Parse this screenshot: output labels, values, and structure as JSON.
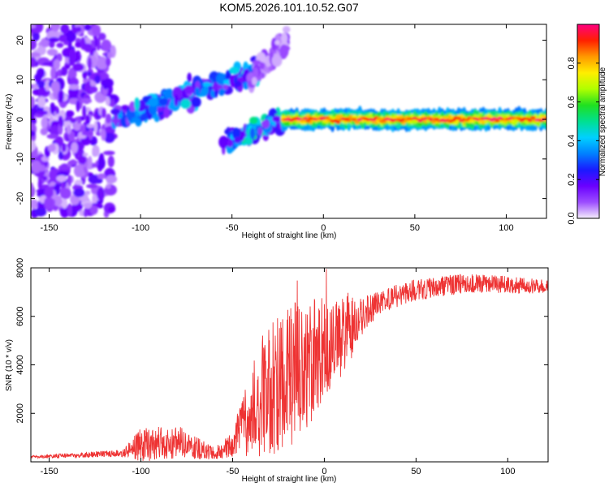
{
  "title": "KOM5.2026.101.10.52.G07",
  "chart_data": [
    {
      "type": "heatmap",
      "name": "spectrogram",
      "xlabel": "Height of straight line (km)",
      "ylabel": "Frequency (Hz)",
      "xlim": [
        -160,
        122
      ],
      "ylim": [
        -25,
        24
      ],
      "xticks": [
        -150,
        -100,
        -50,
        0,
        50,
        100
      ],
      "yticks": [
        -20,
        -10,
        0,
        10,
        20
      ],
      "colorbar": {
        "label": "Normalized spectral amplitude",
        "range": [
          0,
          1
        ],
        "ticks": [
          0.0,
          0.2,
          0.4,
          0.6,
          0.8
        ],
        "colors": [
          "#f5eefc",
          "#9c4dff",
          "#6a00ff",
          "#1a1aff",
          "#0080ff",
          "#00d0ff",
          "#00e090",
          "#20e020",
          "#b0ff00",
          "#ffee00",
          "#ff9900",
          "#ff2000",
          "#ff0080"
        ]
      },
      "features": [
        {
          "name": "noise-cloud",
          "x_range": [
            -160,
            -115
          ],
          "freq_center": 0,
          "freq_spread": 24,
          "amplitude": 0.08
        },
        {
          "name": "upper-branch",
          "x_from": -115,
          "x_to": -35,
          "freq_from": 0,
          "freq_to": 12,
          "amplitude": 0.3
        },
        {
          "name": "lower-branch",
          "x_from": -55,
          "x_to": -20,
          "freq_from": -6,
          "freq_to": 0,
          "amplitude": 0.35
        },
        {
          "name": "faint-high-branch",
          "x_from": -40,
          "x_to": -20,
          "freq_from": 10,
          "freq_to": 20,
          "amplitude": 0.08
        },
        {
          "name": "stable-tone",
          "x_from": -22,
          "x_to": 122,
          "freq": 0,
          "amplitude": 0.95
        }
      ]
    },
    {
      "type": "line",
      "name": "snr",
      "xlabel": "Height of straight line (km)",
      "ylabel": "SNR (10 * v/v)",
      "xlim": [
        -160,
        122
      ],
      "ylim": [
        0,
        8000
      ],
      "xticks": [
        -150,
        -100,
        -50,
        0,
        50,
        100
      ],
      "yticks": [
        2000,
        4000,
        6000,
        8000
      ],
      "color": "#ee3333",
      "envelope": [
        {
          "x": -160,
          "mean": 200,
          "spread": 60
        },
        {
          "x": -110,
          "mean": 350,
          "spread": 150
        },
        {
          "x": -100,
          "mean": 700,
          "spread": 700
        },
        {
          "x": -80,
          "mean": 800,
          "spread": 700
        },
        {
          "x": -60,
          "mean": 350,
          "spread": 250
        },
        {
          "x": -50,
          "mean": 700,
          "spread": 500
        },
        {
          "x": -40,
          "mean": 2200,
          "spread": 2000
        },
        {
          "x": -30,
          "mean": 3000,
          "spread": 2800
        },
        {
          "x": -20,
          "mean": 3500,
          "spread": 3000
        },
        {
          "x": -10,
          "mean": 4000,
          "spread": 2800
        },
        {
          "x": 0,
          "mean": 4600,
          "spread": 2200
        },
        {
          "x": 10,
          "mean": 5200,
          "spread": 1800
        },
        {
          "x": 20,
          "mean": 6000,
          "spread": 900
        },
        {
          "x": 30,
          "mean": 6600,
          "spread": 500
        },
        {
          "x": 50,
          "mean": 7100,
          "spread": 450
        },
        {
          "x": 80,
          "mean": 7400,
          "spread": 400
        },
        {
          "x": 122,
          "mean": 7200,
          "spread": 300
        }
      ]
    }
  ]
}
